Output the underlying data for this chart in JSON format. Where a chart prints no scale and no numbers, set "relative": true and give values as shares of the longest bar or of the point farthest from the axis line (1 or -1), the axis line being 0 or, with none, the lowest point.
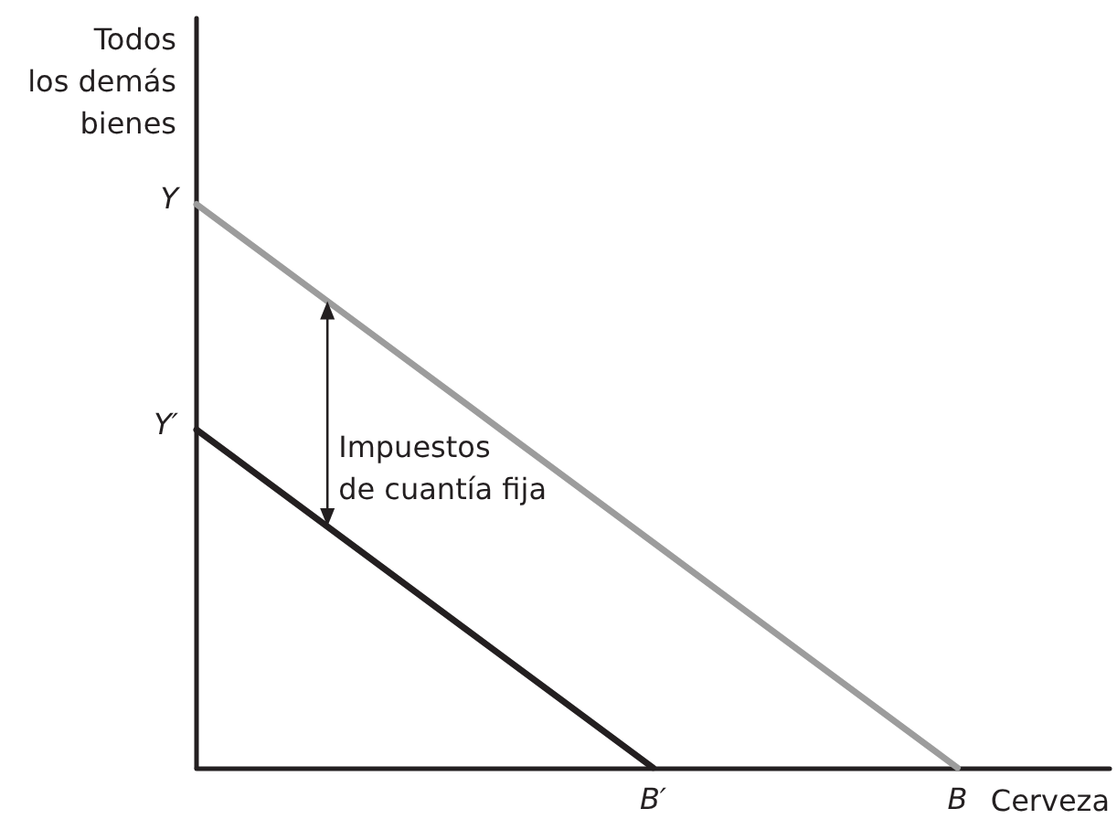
{
  "chart_data": {
    "type": "line",
    "xlabel": "Cerveza",
    "ylabel": "Todos\nlos demás\nbienes",
    "relative": true,
    "tick_labels": "x",
    "marker": "none",
    "categories": [
      null,
      null,
      null,
      "B′",
      null,
      "B",
      null
    ],
    "series": [
      {
        "color": "#9c9c9c",
        "values": [
          1,
          0.8,
          0.6,
          0.4,
          0.2,
          0,
          null
        ]
      },
      {
        "color": "#231f20",
        "values": [
          0.6,
          0.4,
          0.2,
          0,
          null,
          null,
          null
        ]
      }
    ],
    "annotations": [
      "Y",
      "Y′",
      "Impuestos\nde cuantía fija"
    ]
  }
}
